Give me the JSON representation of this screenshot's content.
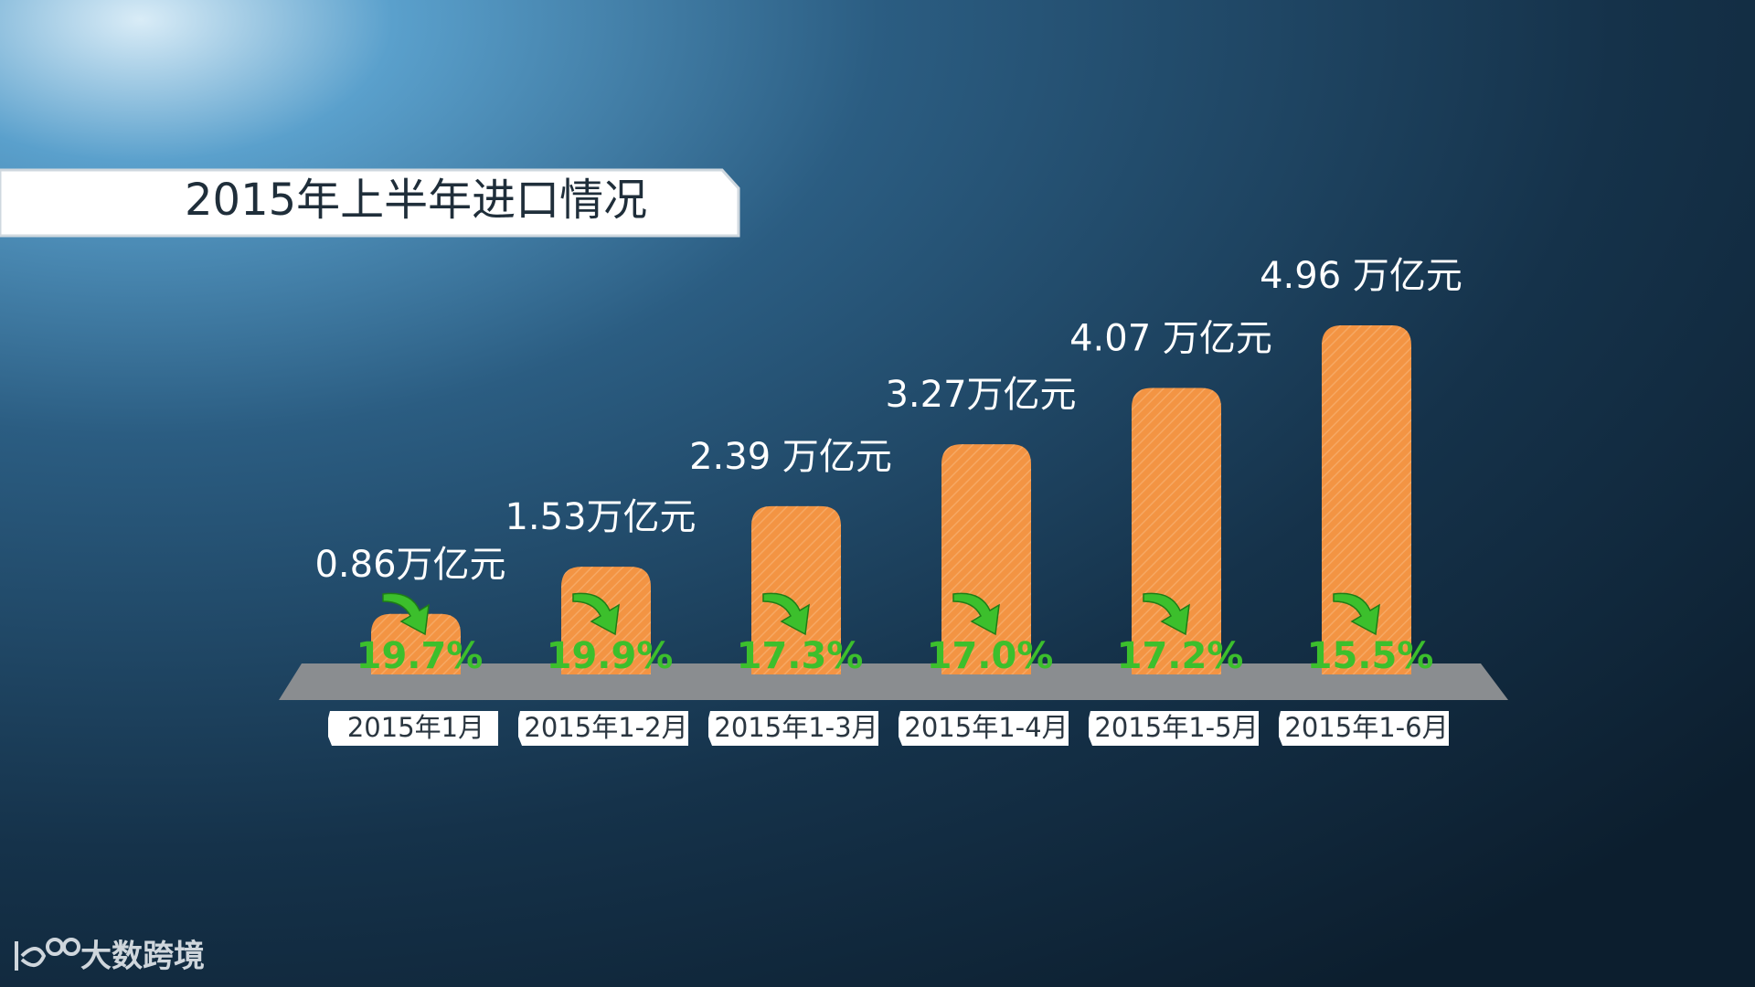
{
  "chart_data": {
    "type": "bar",
    "title": "2015年上半年进口情况",
    "categories": [
      "2015年1月",
      "2015年1-2月",
      "2015年1-3月",
      "2015年1-4月",
      "2015年1-5月",
      "2015年1-6月"
    ],
    "values": [
      0.86,
      1.53,
      2.39,
      3.27,
      4.07,
      4.96
    ],
    "value_labels": [
      "0.86万亿元",
      "1.53万亿元",
      "2.39 万亿元",
      "3.27万亿元",
      "4.07 万亿元",
      "4.96 万亿元"
    ],
    "color": "#f39443",
    "growth": {
      "values": [
        19.7,
        19.9,
        17.3,
        17.0,
        17.2,
        15.5
      ],
      "value_labels": [
        "19.7%",
        "19.9%",
        "17.3%",
        "17.0%",
        "17.2%",
        "15.5%"
      ],
      "color": "#3cbf2c"
    }
  },
  "watermark": "大数跨境"
}
